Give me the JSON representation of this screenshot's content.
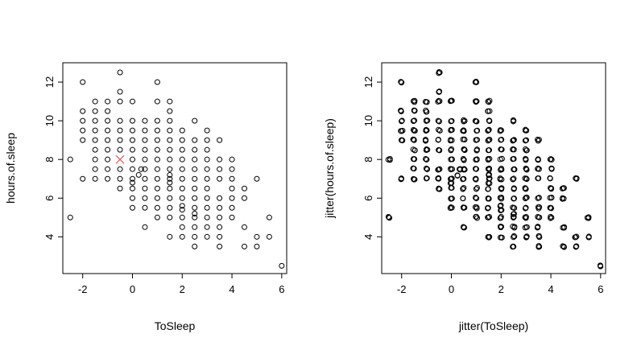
{
  "chart_data": [
    {
      "type": "scatter",
      "title": "",
      "xlabel": "ToSleep",
      "ylabel": "hours.of.sleep",
      "xlim": [
        -2.8,
        6.2
      ],
      "ylim": [
        2.1,
        13.0
      ],
      "xticks": [
        -2,
        0,
        2,
        4,
        6
      ],
      "yticks": [
        4,
        6,
        8,
        10,
        12
      ],
      "x_tick_labels": [
        "-2",
        "0",
        "2",
        "4",
        "6"
      ],
      "y_tick_labels": [
        "4",
        "6",
        "8",
        "10",
        "12"
      ],
      "grid": false,
      "box": true,
      "marker": {
        "x": -0.5,
        "y": 8.0,
        "color": "#e05a5a"
      },
      "points": [
        {
          "x": -2.5,
          "y": 8
        },
        {
          "x": -2.5,
          "y": 5
        },
        {
          "x": -2,
          "y": 12
        },
        {
          "x": -2,
          "y": 10.5
        },
        {
          "x": -2,
          "y": 10
        },
        {
          "x": -2,
          "y": 9.5
        },
        {
          "x": -2,
          "y": 9
        },
        {
          "x": -2,
          "y": 7
        },
        {
          "x": -1.5,
          "y": 11
        },
        {
          "x": -1.5,
          "y": 10.5
        },
        {
          "x": -1.5,
          "y": 10
        },
        {
          "x": -1.5,
          "y": 9.5
        },
        {
          "x": -1.5,
          "y": 9
        },
        {
          "x": -1.5,
          "y": 8.5
        },
        {
          "x": -1.5,
          "y": 8
        },
        {
          "x": -1.5,
          "y": 7.5
        },
        {
          "x": -1.5,
          "y": 7
        },
        {
          "x": -1,
          "y": 11
        },
        {
          "x": -1,
          "y": 10.5
        },
        {
          "x": -1,
          "y": 10
        },
        {
          "x": -1,
          "y": 9.5
        },
        {
          "x": -1,
          "y": 9
        },
        {
          "x": -1,
          "y": 8.5
        },
        {
          "x": -1,
          "y": 8
        },
        {
          "x": -1,
          "y": 7.5
        },
        {
          "x": -1,
          "y": 7
        },
        {
          "x": -0.5,
          "y": 12.5
        },
        {
          "x": -0.5,
          "y": 11.5
        },
        {
          "x": -0.5,
          "y": 11
        },
        {
          "x": -0.5,
          "y": 10
        },
        {
          "x": -0.5,
          "y": 9.5
        },
        {
          "x": -0.5,
          "y": 9
        },
        {
          "x": -0.5,
          "y": 8.5
        },
        {
          "x": -0.5,
          "y": 7.5
        },
        {
          "x": -0.5,
          "y": 7
        },
        {
          "x": -0.5,
          "y": 6.5
        },
        {
          "x": 0,
          "y": 11
        },
        {
          "x": 0,
          "y": 10
        },
        {
          "x": 0,
          "y": 9.5
        },
        {
          "x": 0,
          "y": 9
        },
        {
          "x": 0,
          "y": 8.5
        },
        {
          "x": 0,
          "y": 8
        },
        {
          "x": 0,
          "y": 7.5
        },
        {
          "x": 0,
          "y": 7
        },
        {
          "x": 0,
          "y": 6.8
        },
        {
          "x": 0,
          "y": 6.5
        },
        {
          "x": 0,
          "y": 6
        },
        {
          "x": 0,
          "y": 5.5
        },
        {
          "x": 0.25,
          "y": 7.2
        },
        {
          "x": 0.35,
          "y": 7.5
        },
        {
          "x": 0.5,
          "y": 10
        },
        {
          "x": 0.5,
          "y": 9.5
        },
        {
          "x": 0.5,
          "y": 9
        },
        {
          "x": 0.5,
          "y": 8.5
        },
        {
          "x": 0.5,
          "y": 8
        },
        {
          "x": 0.5,
          "y": 7.5
        },
        {
          "x": 0.5,
          "y": 7
        },
        {
          "x": 0.5,
          "y": 6.5
        },
        {
          "x": 0.5,
          "y": 6
        },
        {
          "x": 0.5,
          "y": 5.5
        },
        {
          "x": 0.5,
          "y": 4.5
        },
        {
          "x": 1,
          "y": 12
        },
        {
          "x": 1,
          "y": 11
        },
        {
          "x": 1,
          "y": 10
        },
        {
          "x": 1,
          "y": 9.5
        },
        {
          "x": 1,
          "y": 9
        },
        {
          "x": 1,
          "y": 8.5
        },
        {
          "x": 1,
          "y": 8
        },
        {
          "x": 1,
          "y": 7.5
        },
        {
          "x": 1,
          "y": 7
        },
        {
          "x": 1,
          "y": 6.5
        },
        {
          "x": 1,
          "y": 6
        },
        {
          "x": 1,
          "y": 5.5
        },
        {
          "x": 1,
          "y": 5
        },
        {
          "x": 1.5,
          "y": 11
        },
        {
          "x": 1.5,
          "y": 10.5
        },
        {
          "x": 1.5,
          "y": 10
        },
        {
          "x": 1.5,
          "y": 9.5
        },
        {
          "x": 1.5,
          "y": 9
        },
        {
          "x": 1.5,
          "y": 8.5
        },
        {
          "x": 1.5,
          "y": 8
        },
        {
          "x": 1.5,
          "y": 7.5
        },
        {
          "x": 1.5,
          "y": 7.2
        },
        {
          "x": 1.5,
          "y": 7
        },
        {
          "x": 1.5,
          "y": 6.8
        },
        {
          "x": 1.5,
          "y": 6.5
        },
        {
          "x": 1.5,
          "y": 6
        },
        {
          "x": 1.5,
          "y": 5.5
        },
        {
          "x": 1.5,
          "y": 5
        },
        {
          "x": 1.5,
          "y": 4
        },
        {
          "x": 2,
          "y": 9.5
        },
        {
          "x": 2,
          "y": 9
        },
        {
          "x": 2,
          "y": 8.5
        },
        {
          "x": 2,
          "y": 8
        },
        {
          "x": 2,
          "y": 7.5
        },
        {
          "x": 2,
          "y": 7
        },
        {
          "x": 2,
          "y": 6.5
        },
        {
          "x": 2,
          "y": 6
        },
        {
          "x": 2,
          "y": 5.6
        },
        {
          "x": 2,
          "y": 5.4
        },
        {
          "x": 2,
          "y": 5
        },
        {
          "x": 2,
          "y": 4.5
        },
        {
          "x": 2,
          "y": 4
        },
        {
          "x": 2.5,
          "y": 10
        },
        {
          "x": 2.5,
          "y": 9
        },
        {
          "x": 2.5,
          "y": 8.5
        },
        {
          "x": 2.5,
          "y": 8
        },
        {
          "x": 2.5,
          "y": 7.5
        },
        {
          "x": 2.5,
          "y": 7
        },
        {
          "x": 2.5,
          "y": 6.5
        },
        {
          "x": 2.5,
          "y": 6
        },
        {
          "x": 2.5,
          "y": 5.5
        },
        {
          "x": 2.5,
          "y": 5.2
        },
        {
          "x": 2.5,
          "y": 5
        },
        {
          "x": 2.5,
          "y": 4.5
        },
        {
          "x": 2.5,
          "y": 4
        },
        {
          "x": 2.5,
          "y": 3.5
        },
        {
          "x": 3,
          "y": 9.5
        },
        {
          "x": 3,
          "y": 9
        },
        {
          "x": 3,
          "y": 8.5
        },
        {
          "x": 3,
          "y": 8
        },
        {
          "x": 3,
          "y": 7.5
        },
        {
          "x": 3,
          "y": 7
        },
        {
          "x": 3,
          "y": 6.5
        },
        {
          "x": 3,
          "y": 6
        },
        {
          "x": 3,
          "y": 5.5
        },
        {
          "x": 3,
          "y": 5
        },
        {
          "x": 3,
          "y": 4.5
        },
        {
          "x": 3,
          "y": 4
        },
        {
          "x": 3.5,
          "y": 9
        },
        {
          "x": 3.5,
          "y": 8
        },
        {
          "x": 3.5,
          "y": 7.5
        },
        {
          "x": 3.5,
          "y": 7
        },
        {
          "x": 3.5,
          "y": 6
        },
        {
          "x": 3.5,
          "y": 5.5
        },
        {
          "x": 3.5,
          "y": 5
        },
        {
          "x": 3.5,
          "y": 4.5
        },
        {
          "x": 3.5,
          "y": 4
        },
        {
          "x": 3.5,
          "y": 3.5
        },
        {
          "x": 4,
          "y": 8
        },
        {
          "x": 4,
          "y": 7.5
        },
        {
          "x": 4,
          "y": 7
        },
        {
          "x": 4,
          "y": 6.5
        },
        {
          "x": 4,
          "y": 6
        },
        {
          "x": 4,
          "y": 5.5
        },
        {
          "x": 4,
          "y": 5
        },
        {
          "x": 4.5,
          "y": 6.5
        },
        {
          "x": 4.5,
          "y": 6
        },
        {
          "x": 4.5,
          "y": 4.5
        },
        {
          "x": 4.5,
          "y": 3.5
        },
        {
          "x": 5,
          "y": 7
        },
        {
          "x": 5,
          "y": 4
        },
        {
          "x": 5,
          "y": 3.5
        },
        {
          "x": 5.5,
          "y": 5
        },
        {
          "x": 5.5,
          "y": 4
        },
        {
          "x": 6,
          "y": 2.5
        }
      ]
    },
    {
      "type": "scatter",
      "title": "",
      "xlabel": "jitter(ToSleep)",
      "ylabel": "jitter(hours.of.sleep)",
      "xlim": [
        -2.8,
        6.2
      ],
      "ylim": [
        2.1,
        13.0
      ],
      "xticks": [
        -2,
        0,
        2,
        4,
        6
      ],
      "yticks": [
        4,
        6,
        8,
        10,
        12
      ],
      "x_tick_labels": [
        "-2",
        "0",
        "2",
        "4",
        "6"
      ],
      "y_tick_labels": [
        "4",
        "6",
        "8",
        "10",
        "12"
      ],
      "grid": false,
      "box": true,
      "jitter": true
    }
  ]
}
